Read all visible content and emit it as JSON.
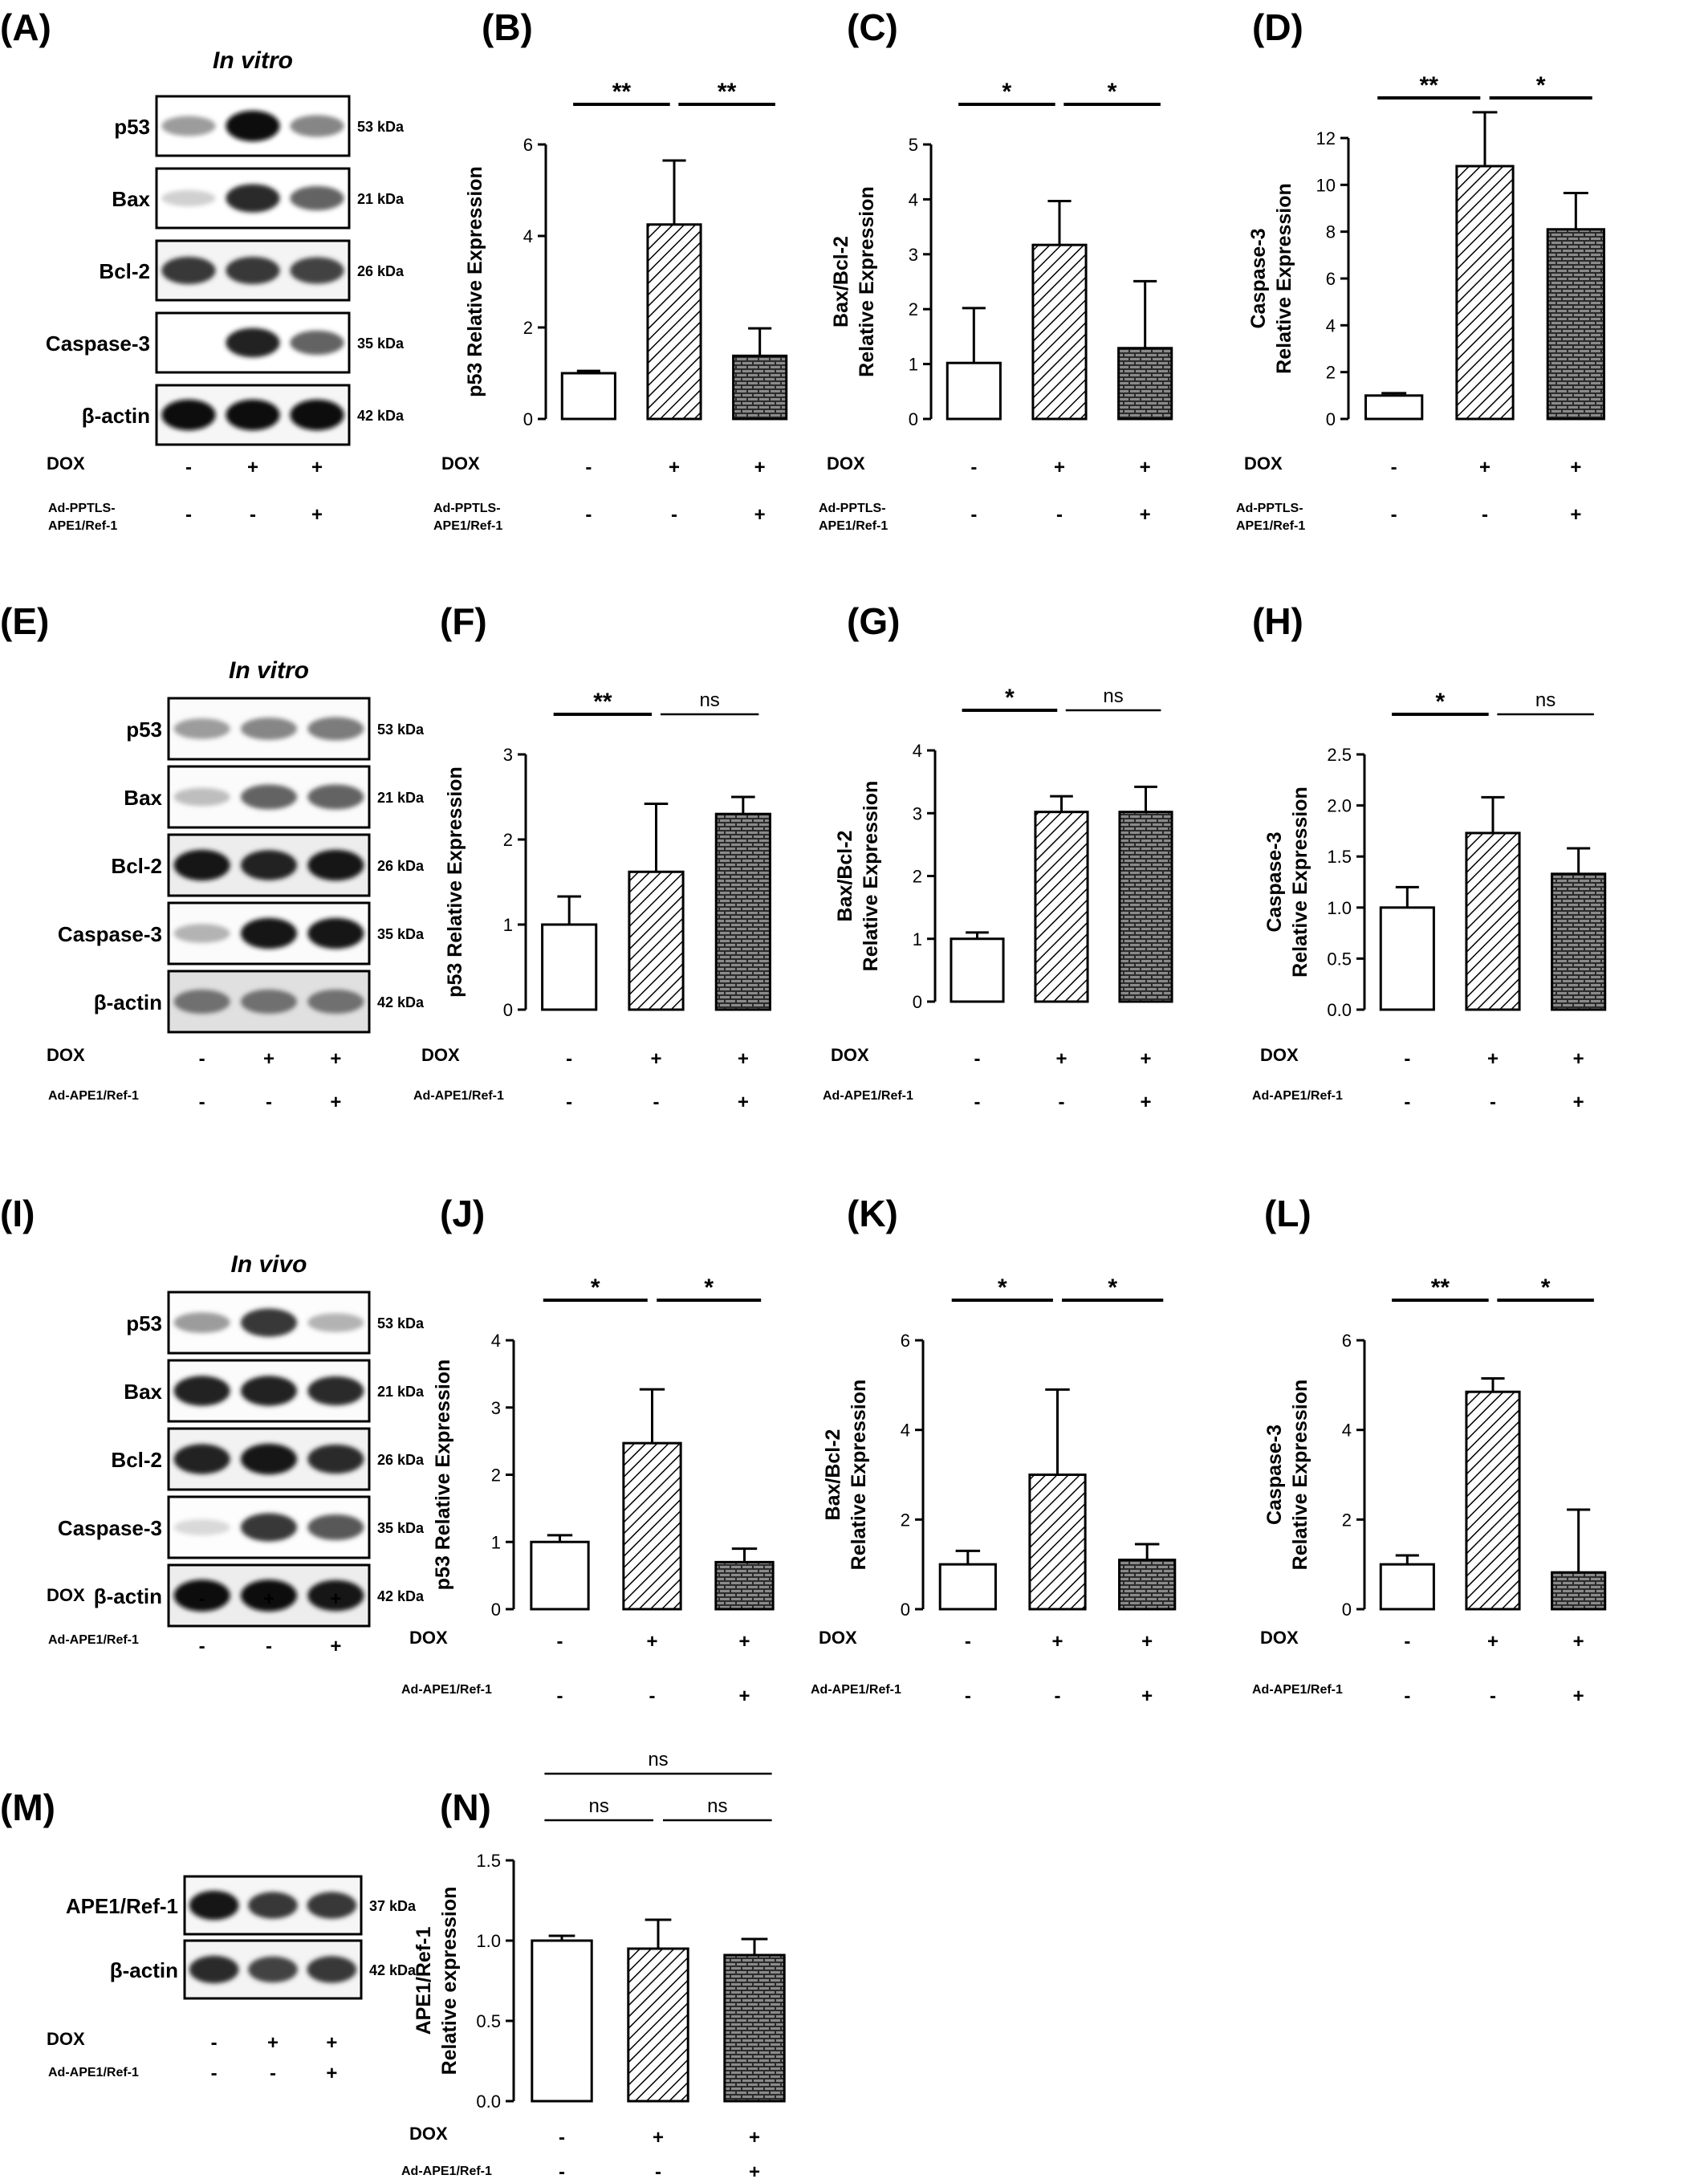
{
  "colors": {
    "ink": "#000000",
    "blot_bg": "#ffffff",
    "blot_bg_dark": "#cfcfcf"
  },
  "rows": [
    {
      "blot": {
        "letter": "(A)",
        "heading": "In vitro",
        "bands": [
          {
            "name": "p53",
            "kda": "53 kDa",
            "intensity": [
              0.35,
              1.0,
              0.45
            ],
            "bg": 0
          },
          {
            "name": "Bax",
            "kda": "21 kDa",
            "intensity": [
              0.12,
              0.85,
              0.6
            ],
            "bg": 0
          },
          {
            "name": "Bcl-2",
            "kda": "26 kDa",
            "intensity": [
              0.8,
              0.8,
              0.75
            ],
            "bg": 0.12
          },
          {
            "name": "Caspase-3",
            "kda": "35 kDa",
            "intensity": [
              0.0,
              0.9,
              0.6
            ],
            "bg": 0
          },
          {
            "name": "β-actin",
            "kda": "42 kDa",
            "intensity": [
              1.0,
              1.0,
              1.0
            ],
            "bg": 0.1
          }
        ],
        "cond1_label": "DOX",
        "cond1_signs": [
          "-",
          "+",
          "+"
        ],
        "cond2_label_lines": [
          "Ad-PPTLS-",
          "APE1/Ref-1"
        ],
        "cond2_signs": [
          "-",
          "-",
          "+"
        ]
      },
      "charts": [
        {
          "letter": "(B)",
          "ylabel_lines": [
            "p53 Relative Expression"
          ],
          "chart_data": {
            "type": "bar",
            "values": [
              1.0,
              4.25,
              1.38
            ],
            "errors": [
              0.05,
              1.4,
              0.6
            ],
            "ylim": [
              0,
              6
            ],
            "ticks": [
              0,
              2,
              4,
              6
            ],
            "tick_labels": [
              "0",
              "2",
              "4",
              "6"
            ],
            "sig": [
              {
                "from": 0,
                "to": 1,
                "label": "**",
                "level": 1
              },
              {
                "from": 1,
                "to": 2,
                "label": "**",
                "level": 1
              }
            ]
          },
          "cond1_label": "DOX",
          "cond1_signs": [
            "-",
            "+",
            "+"
          ],
          "cond2_label_lines": [
            "Ad-PPTLS-",
            "APE1/Ref-1"
          ],
          "cond2_signs": [
            "-",
            "-",
            "+"
          ]
        },
        {
          "letter": "(C)",
          "ylabel_lines": [
            "Bax/Bcl-2",
            "Relative Expression"
          ],
          "chart_data": {
            "type": "bar",
            "values": [
              1.02,
              3.17,
              1.29
            ],
            "errors": [
              1.0,
              0.8,
              1.22
            ],
            "ylim": [
              0,
              5
            ],
            "ticks": [
              0,
              1,
              2,
              3,
              4,
              5
            ],
            "tick_labels": [
              "0",
              "1",
              "2",
              "3",
              "4",
              "5"
            ],
            "sig": [
              {
                "from": 0,
                "to": 1,
                "label": "*",
                "level": 1
              },
              {
                "from": 1,
                "to": 2,
                "label": "*",
                "level": 1
              }
            ]
          },
          "cond1_label": "DOX",
          "cond1_signs": [
            "-",
            "+",
            "+"
          ],
          "cond2_label_lines": [
            "Ad-PPTLS-",
            "APE1/Ref-1"
          ],
          "cond2_signs": [
            "-",
            "-",
            "+"
          ]
        },
        {
          "letter": "(D)",
          "ylabel_lines": [
            "Caspase-3",
            "Relative Expression"
          ],
          "chart_data": {
            "type": "bar",
            "values": [
              1.0,
              10.8,
              8.1
            ],
            "errors": [
              0.1,
              2.3,
              1.55
            ],
            "ylim": [
              0,
              12
            ],
            "ticks": [
              0,
              2,
              4,
              6,
              8,
              10,
              12
            ],
            "tick_labels": [
              "0",
              "2",
              "4",
              "6",
              "8",
              "10",
              "12"
            ],
            "sig": [
              {
                "from": 0,
                "to": 1,
                "label": "**",
                "level": 1
              },
              {
                "from": 1,
                "to": 2,
                "label": "*",
                "level": 1
              }
            ]
          },
          "cond1_label": "DOX",
          "cond1_signs": [
            "-",
            "+",
            "+"
          ],
          "cond2_label_lines": [
            "Ad-PPTLS-",
            "APE1/Ref-1"
          ],
          "cond2_signs": [
            "-",
            "-",
            "+"
          ]
        }
      ]
    },
    {
      "blot": {
        "letter": "(E)",
        "heading": "In vitro",
        "bands": [
          {
            "name": "p53",
            "kda": "53 kDa",
            "intensity": [
              0.35,
              0.45,
              0.5
            ],
            "bg": 0.05
          },
          {
            "name": "Bax",
            "kda": "21 kDa",
            "intensity": [
              0.2,
              0.6,
              0.6
            ],
            "bg": 0.05
          },
          {
            "name": "Bcl-2",
            "kda": "26 kDa",
            "intensity": [
              0.95,
              0.9,
              0.95
            ],
            "bg": 0.2
          },
          {
            "name": "Caspase-3",
            "kda": "35 kDa",
            "intensity": [
              0.25,
              0.95,
              0.95
            ],
            "bg": 0.05
          },
          {
            "name": "β-actin",
            "kda": "42 kDa",
            "intensity": [
              0.55,
              0.55,
              0.55
            ],
            "bg": 0.35
          }
        ],
        "cond1_label": "DOX",
        "cond1_signs": [
          "-",
          "+",
          "+"
        ],
        "cond2_label_lines": [
          "Ad-APE1/Ref-1"
        ],
        "cond2_signs": [
          "-",
          "-",
          "+"
        ]
      },
      "charts": [
        {
          "letter": "(F)",
          "ylabel_lines": [
            "p53 Relative Expression"
          ],
          "chart_data": {
            "type": "bar",
            "values": [
              1.0,
              1.62,
              2.3
            ],
            "errors": [
              0.33,
              0.8,
              0.2
            ],
            "ylim": [
              0,
              3
            ],
            "ticks": [
              0,
              1,
              2,
              3
            ],
            "tick_labels": [
              "0",
              "1",
              "2",
              "3"
            ],
            "sig": [
              {
                "from": 0,
                "to": 1,
                "label": "**",
                "level": 1
              },
              {
                "from": 1,
                "to": 2,
                "label": "ns",
                "level": 1
              }
            ]
          },
          "cond1_label": "DOX",
          "cond1_signs": [
            "-",
            "+",
            "+"
          ],
          "cond2_label_lines": [
            "Ad-APE1/Ref-1"
          ],
          "cond2_signs": [
            "-",
            "-",
            "+"
          ]
        },
        {
          "letter": "(G)",
          "ylabel_lines": [
            "Bax/Bcl-2",
            "Relative Expression"
          ],
          "chart_data": {
            "type": "bar",
            "values": [
              1.0,
              3.02,
              3.02
            ],
            "errors": [
              0.1,
              0.25,
              0.4
            ],
            "ylim": [
              0,
              4
            ],
            "ticks": [
              0,
              1,
              2,
              3,
              4
            ],
            "tick_labels": [
              "0",
              "1",
              "2",
              "3",
              "4"
            ],
            "sig": [
              {
                "from": 0,
                "to": 1,
                "label": "*",
                "level": 1
              },
              {
                "from": 1,
                "to": 2,
                "label": "ns",
                "level": 1
              }
            ]
          },
          "cond1_label": "DOX",
          "cond1_signs": [
            "-",
            "+",
            "+"
          ],
          "cond2_label_lines": [
            "Ad-APE1/Ref-1"
          ],
          "cond2_signs": [
            "-",
            "-",
            "+"
          ]
        },
        {
          "letter": "(H)",
          "ylabel_lines": [
            "Caspase-3",
            "Relative Expression"
          ],
          "chart_data": {
            "type": "bar",
            "values": [
              1.0,
              1.73,
              1.33
            ],
            "errors": [
              0.2,
              0.35,
              0.25
            ],
            "ylim": [
              0,
              2.5
            ],
            "ticks": [
              0,
              0.5,
              1,
              1.5,
              2,
              2.5
            ],
            "tick_labels": [
              "0.0",
              "0.5",
              "1.0",
              "1.5",
              "2.0",
              "2.5"
            ],
            "sig": [
              {
                "from": 0,
                "to": 1,
                "label": "*",
                "level": 1
              },
              {
                "from": 1,
                "to": 2,
                "label": "ns",
                "level": 1
              }
            ]
          },
          "cond1_label": "DOX",
          "cond1_signs": [
            "-",
            "+",
            "+"
          ],
          "cond2_label_lines": [
            "Ad-APE1/Ref-1"
          ],
          "cond2_signs": [
            "-",
            "-",
            "+"
          ]
        }
      ]
    },
    {
      "blot": {
        "letter": "(I)",
        "heading": "In vivo",
        "bands": [
          {
            "name": "p53",
            "kda": "53 kDa",
            "intensity": [
              0.35,
              0.8,
              0.25
            ],
            "bg": 0.02
          },
          {
            "name": "Bax",
            "kda": "21 kDa",
            "intensity": [
              0.9,
              0.9,
              0.85
            ],
            "bg": 0.05
          },
          {
            "name": "Bcl-2",
            "kda": "26 kDa",
            "intensity": [
              0.9,
              0.95,
              0.85
            ],
            "bg": 0.15
          },
          {
            "name": "Caspase-3",
            "kda": "35 kDa",
            "intensity": [
              0.08,
              0.8,
              0.65
            ],
            "bg": 0.02
          },
          {
            "name": "β-actin",
            "kda": "42 kDa",
            "intensity": [
              1.0,
              1.0,
              0.95
            ],
            "bg": 0.2
          }
        ],
        "cond1_label": "DOX",
        "cond1_signs": [
          "-",
          "+",
          "+"
        ],
        "cond2_label_lines": [
          "Ad-APE1/Ref-1"
        ],
        "cond2_signs": [
          "-",
          "-",
          "+"
        ]
      },
      "charts": [
        {
          "letter": "(J)",
          "ylabel_lines": [
            "p53 Relative Expression"
          ],
          "chart_data": {
            "type": "bar",
            "values": [
              1.0,
              2.47,
              0.7
            ],
            "errors": [
              0.1,
              0.8,
              0.2
            ],
            "ylim": [
              0,
              4
            ],
            "ticks": [
              0,
              1,
              2,
              3,
              4
            ],
            "tick_labels": [
              "0",
              "1",
              "2",
              "3",
              "4"
            ],
            "sig": [
              {
                "from": 0,
                "to": 1,
                "label": "*",
                "level": 1
              },
              {
                "from": 1,
                "to": 2,
                "label": "*",
                "level": 1
              }
            ]
          },
          "cond1_label": "DOX",
          "cond1_signs": [
            "-",
            "+",
            "+"
          ],
          "cond2_label_lines": [
            "Ad-APE1/Ref-1"
          ],
          "cond2_signs": [
            "-",
            "-",
            "+"
          ]
        },
        {
          "letter": "(K)",
          "ylabel_lines": [
            "Bax/Bcl-2",
            "Relative Expression"
          ],
          "chart_data": {
            "type": "bar",
            "values": [
              1.0,
              3.0,
              1.1
            ],
            "errors": [
              0.3,
              1.9,
              0.35
            ],
            "ylim": [
              0,
              6
            ],
            "ticks": [
              0,
              2,
              4,
              6
            ],
            "tick_labels": [
              "0",
              "2",
              "4",
              "6"
            ],
            "sig": [
              {
                "from": 0,
                "to": 1,
                "label": "*",
                "level": 1
              },
              {
                "from": 1,
                "to": 2,
                "label": "*",
                "level": 1
              }
            ]
          },
          "cond1_label": "DOX",
          "cond1_signs": [
            "-",
            "+",
            "+"
          ],
          "cond2_label_lines": [
            "Ad-APE1/Ref-1"
          ],
          "cond2_signs": [
            "-",
            "-",
            "+"
          ]
        },
        {
          "letter": "(L)",
          "ylabel_lines": [
            "Caspase-3",
            "Relative Expression"
          ],
          "chart_data": {
            "type": "bar",
            "values": [
              1.0,
              4.85,
              0.82
            ],
            "errors": [
              0.2,
              0.3,
              1.4
            ],
            "ylim": [
              0,
              6
            ],
            "ticks": [
              0,
              2,
              4,
              6
            ],
            "tick_labels": [
              "0",
              "2",
              "4",
              "6"
            ],
            "sig": [
              {
                "from": 0,
                "to": 1,
                "label": "**",
                "level": 1
              },
              {
                "from": 1,
                "to": 2,
                "label": "*",
                "level": 1
              }
            ]
          },
          "cond1_label": "DOX",
          "cond1_signs": [
            "-",
            "+",
            "+"
          ],
          "cond2_label_lines": [
            "Ad-APE1/Ref-1"
          ],
          "cond2_signs": [
            "-",
            "-",
            "+"
          ]
        }
      ]
    },
    {
      "blot": {
        "letter": "(M)",
        "heading": "",
        "bands": [
          {
            "name": "APE1/Ref-1",
            "kda": "37 kDa",
            "intensity": [
              0.95,
              0.8,
              0.8
            ],
            "bg": 0.1
          },
          {
            "name": "β-actin",
            "kda": "42 kDa",
            "intensity": [
              0.85,
              0.75,
              0.8
            ],
            "bg": 0.12
          }
        ],
        "cond1_label": "DOX",
        "cond1_signs": [
          "-",
          "+",
          "+"
        ],
        "cond2_label_lines": [
          "Ad-APE1/Ref-1"
        ],
        "cond2_signs": [
          "-",
          "-",
          "+"
        ]
      },
      "charts": [
        {
          "letter": "(N)",
          "ylabel_lines": [
            "APE1/Ref-1",
            "Relative expression"
          ],
          "chart_data": {
            "type": "bar",
            "values": [
              1.0,
              0.95,
              0.91
            ],
            "errors": [
              0.03,
              0.18,
              0.1
            ],
            "ylim": [
              0,
              1.5
            ],
            "ticks": [
              0,
              0.5,
              1,
              1.5
            ],
            "tick_labels": [
              "0.0",
              "0.5",
              "1.0",
              "1.5"
            ],
            "sig": [
              {
                "from": 0,
                "to": 1,
                "label": "ns",
                "level": 1
              },
              {
                "from": 1,
                "to": 2,
                "label": "ns",
                "level": 1
              },
              {
                "from": 0,
                "to": 2,
                "label": "ns",
                "level": 2
              }
            ]
          },
          "cond1_label": "DOX",
          "cond1_signs": [
            "-",
            "+",
            "+"
          ],
          "cond2_label_lines": [
            "Ad-APE1/Ref-1"
          ],
          "cond2_signs": [
            "-",
            "-",
            "+"
          ]
        }
      ]
    }
  ]
}
